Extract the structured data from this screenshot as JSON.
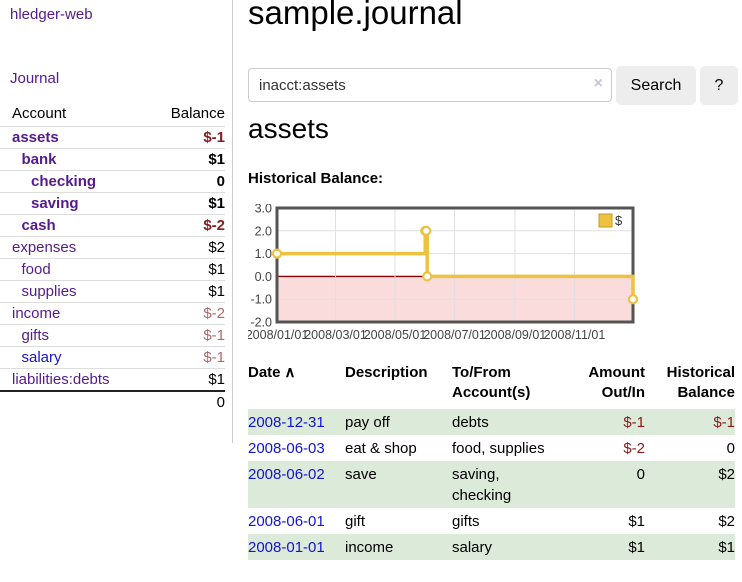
{
  "colors": {
    "link_purple": "#551a8b",
    "link_blue": "#1414cc",
    "negative_strong": "#8b1a1a",
    "negative_soft": "#b06868",
    "row_highlight_green": "#dcead9",
    "chart_line": "#edc240",
    "chart_negative_bg": "#fadcdc",
    "chart_zero_line": "#8b0000",
    "chart_grid": "#e0e0e0",
    "chart_border": "#545454"
  },
  "sidebar": {
    "brand": "hledger-web",
    "journal_link": "Journal",
    "table": {
      "headers": {
        "account": "Account",
        "balance": "Balance"
      },
      "rows": [
        {
          "account": "assets",
          "balance": "$-1",
          "indent": 1,
          "bold": true,
          "balance_style": "neg-strong",
          "link": "purple"
        },
        {
          "account": "bank",
          "balance": "$1",
          "indent": 2,
          "bold": true,
          "balance_style": "plain",
          "link": "purple"
        },
        {
          "account": "checking",
          "balance": "0",
          "indent": 3,
          "bold": true,
          "balance_style": "plain",
          "link": "purple"
        },
        {
          "account": "saving",
          "balance": "$1",
          "indent": 3,
          "bold": true,
          "balance_style": "plain",
          "link": "purple"
        },
        {
          "account": "cash",
          "balance": "$-2",
          "indent": 2,
          "bold": true,
          "balance_style": "neg-strong",
          "link": "purple"
        },
        {
          "account": "expenses",
          "balance": "$2",
          "indent": 1,
          "bold": false,
          "balance_style": "plain",
          "link": "purple"
        },
        {
          "account": "food",
          "balance": "$1",
          "indent": 2,
          "bold": false,
          "balance_style": "plain",
          "link": "purple"
        },
        {
          "account": "supplies",
          "balance": "$1",
          "indent": 2,
          "bold": false,
          "balance_style": "plain",
          "link": "purple"
        },
        {
          "account": "income",
          "balance": "$-2",
          "indent": 1,
          "bold": false,
          "balance_style": "neg-soft",
          "link": "purple"
        },
        {
          "account": "gifts",
          "balance": "$-1",
          "indent": 2,
          "bold": false,
          "balance_style": "neg-soft",
          "link": "purple"
        },
        {
          "account": "salary",
          "balance": "$-1",
          "indent": 2,
          "bold": false,
          "balance_style": "neg-soft",
          "link": "blue"
        },
        {
          "account": "liabilities:debts",
          "balance": "$1",
          "indent": 1,
          "bold": false,
          "balance_style": "plain",
          "link": "purple"
        }
      ],
      "total": "0"
    }
  },
  "main": {
    "title": "sample.journal",
    "search": {
      "value": "inacct:assets",
      "clear_icon": "×",
      "button_label": "Search",
      "help_label": "?"
    },
    "account_heading": "assets",
    "chart_title": "Historical Balance:"
  },
  "chart_data": {
    "type": "line",
    "step": true,
    "title": "Historical Balance",
    "series": [
      {
        "name": "$",
        "color": "#edc240",
        "points": [
          [
            "2008-01-01",
            1
          ],
          [
            "2008-06-01",
            2
          ],
          [
            "2008-06-02",
            2
          ],
          [
            "2008-06-03",
            0
          ],
          [
            "2008-12-31",
            -1
          ]
        ]
      }
    ],
    "x_range": [
      "2008-01-01",
      "2008-12-31"
    ],
    "ylim": [
      -2,
      3
    ],
    "y_ticks": [
      {
        "value": 3,
        "label": "3.0"
      },
      {
        "value": 2,
        "label": "2.0"
      },
      {
        "value": 1,
        "label": "1.0"
      },
      {
        "value": 0,
        "label": "0.0"
      },
      {
        "value": -1,
        "label": "-1.0"
      },
      {
        "value": -2,
        "label": "-2.0"
      }
    ],
    "x_ticks": [
      {
        "date": "2008-01-01",
        "label": "2008/01/01"
      },
      {
        "date": "2008-03-01",
        "label": "2008/03/01"
      },
      {
        "date": "2008-05-01",
        "label": "2008/05/01"
      },
      {
        "date": "2008-07-01",
        "label": "2008/07/01"
      },
      {
        "date": "2008-09-01",
        "label": "2008/09/01"
      },
      {
        "date": "2008-11-01",
        "label": "2008/11/01"
      }
    ],
    "grid": true,
    "legend": {
      "label": "$",
      "position": "top-right"
    },
    "negative_region_shaded": true
  },
  "register": {
    "headers": {
      "date": "Date",
      "sort_arrow": "∧",
      "description": "Description",
      "accounts": "To/From Account(s)",
      "amount": "Amount Out/In",
      "balance": "Historical Balance"
    },
    "rows": [
      {
        "date": "2008-12-31",
        "description": "pay off",
        "accounts": "debts",
        "amount": "$-1",
        "amount_neg": true,
        "balance": "$-1",
        "balance_neg": true
      },
      {
        "date": "2008-06-03",
        "description": "eat & shop",
        "accounts": "food, supplies",
        "amount": "$-2",
        "amount_neg": true,
        "balance": "0",
        "balance_neg": false
      },
      {
        "date": "2008-06-02",
        "description": "save",
        "accounts": "saving, checking",
        "amount": "0",
        "amount_neg": false,
        "balance": "$2",
        "balance_neg": false
      },
      {
        "date": "2008-06-01",
        "description": "gift",
        "accounts": "gifts",
        "amount": "$1",
        "amount_neg": false,
        "balance": "$2",
        "balance_neg": false
      },
      {
        "date": "2008-01-01",
        "description": "income",
        "accounts": "salary",
        "amount": "$1",
        "amount_neg": false,
        "balance": "$1",
        "balance_neg": false
      }
    ]
  }
}
